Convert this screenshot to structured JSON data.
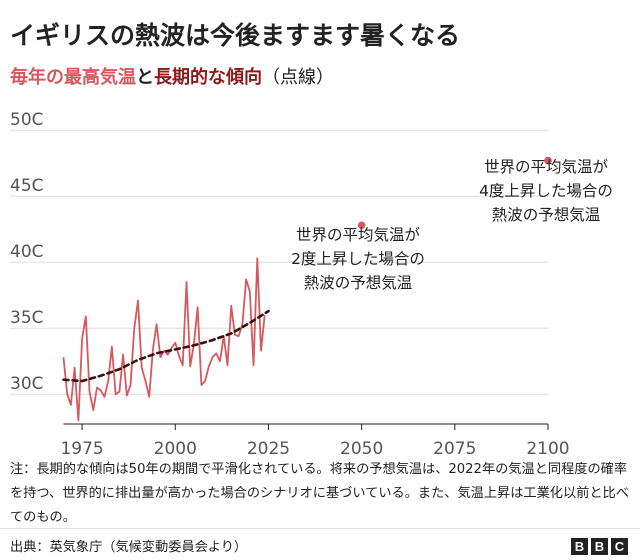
{
  "title": "イギリスの熱波は今後ますます暑くなる",
  "subtitle": {
    "part_a": "毎年の最高気温",
    "part_b": "と",
    "part_c": "長期的な傾向",
    "part_d": "（点線）"
  },
  "note": "注：長期的な傾向は50年の期間で平滑化されている。将来の予想気温は、2022年の気温と同程度の確率を持つ、世界的に排出量が高かった場合のシナリオに基づいている。また、気温上昇は工業化以前と比べてのもの。",
  "source": "出典：英気象庁（気候変動委員会より）",
  "brand": [
    "B",
    "B",
    "C"
  ],
  "colors": {
    "annual_line": "#d5595f",
    "trend_line": "#3a1010",
    "projection_point": "#d5595f",
    "grid": "#dddddd",
    "axis_label": "#555555"
  },
  "chart_data": {
    "type": "line",
    "xlim": [
      1968,
      2100
    ],
    "ylim": [
      26,
      52
    ],
    "x_ticks": [
      1975,
      2000,
      2025,
      2050,
      2075,
      2100
    ],
    "x_tick_labels": [
      "1975",
      "2000",
      "2025",
      "2050",
      "2075",
      "2100"
    ],
    "y_ticks": [
      30,
      35,
      40,
      45,
      50
    ],
    "y_tick_labels": [
      "30C",
      "35C",
      "40C",
      "45C",
      "50C"
    ],
    "grid": "horizontal",
    "series": [
      {
        "style": "solid",
        "x": [
          1970,
          1971,
          1972,
          1973,
          1974,
          1975,
          1976,
          1977,
          1978,
          1979,
          1980,
          1981,
          1982,
          1983,
          1984,
          1985,
          1986,
          1987,
          1988,
          1989,
          1990,
          1991,
          1992,
          1993,
          1994,
          1995,
          1996,
          1997,
          1998,
          1999,
          2000,
          2001,
          2002,
          2003,
          2004,
          2005,
          2006,
          2007,
          2008,
          2009,
          2010,
          2011,
          2012,
          2013,
          2014,
          2015,
          2016,
          2017,
          2018,
          2019,
          2020,
          2021,
          2022,
          2023,
          2024
        ],
        "y": [
          32.8,
          30.0,
          29.2,
          32.0,
          28.0,
          34.2,
          35.9,
          30.2,
          28.8,
          30.5,
          30.3,
          29.8,
          31.0,
          33.6,
          30.0,
          30.2,
          33.0,
          29.9,
          30.7,
          35.0,
          37.1,
          32.0,
          31.0,
          29.8,
          33.4,
          35.3,
          32.8,
          33.3,
          33.0,
          33.5,
          33.9,
          32.9,
          32.2,
          38.5,
          32.1,
          33.8,
          36.6,
          30.7,
          31.0,
          32.1,
          32.8,
          33.1,
          32.5,
          34.4,
          32.2,
          36.7,
          34.5,
          34.4,
          35.3,
          38.7,
          37.8,
          32.2,
          40.3,
          33.3,
          36.0
        ]
      },
      {
        "style": "dashed",
        "x": [
          1970,
          1975,
          1980,
          1985,
          1990,
          1995,
          2000,
          2005,
          2010,
          2015,
          2020,
          2025
        ],
        "y": [
          31.1,
          31.0,
          31.4,
          31.9,
          32.6,
          33.1,
          33.4,
          33.7,
          34.1,
          34.6,
          35.4,
          36.3
        ]
      }
    ],
    "projections": [
      {
        "x": 2050,
        "y": 42.8,
        "label": [
          "世界の平均気温が",
          "2度上昇した場合の",
          "熱波の予想気温"
        ]
      },
      {
        "x": 2100,
        "y": 47.7,
        "label": [
          "世界の平均気温が",
          "4度上昇した場合の",
          "熱波の予想気温"
        ]
      }
    ]
  }
}
